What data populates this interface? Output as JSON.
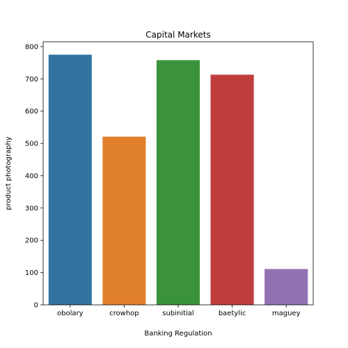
{
  "chart_data": {
    "type": "bar",
    "title": "Capital Markets",
    "xlabel": "Banking Regulation",
    "ylabel": "product photography",
    "categories": [
      "obolary",
      "crowhop",
      "subinitial",
      "baetylic",
      "maguey"
    ],
    "values": [
      775,
      521,
      758,
      713,
      111
    ],
    "colors": [
      "#3274a1",
      "#e1812c",
      "#3a923a",
      "#c03d3e",
      "#9372b2"
    ],
    "ylim": [
      0,
      815
    ],
    "yticks": [
      0,
      100,
      200,
      300,
      400,
      500,
      600,
      700,
      800
    ],
    "grid": false,
    "legend": "none"
  }
}
